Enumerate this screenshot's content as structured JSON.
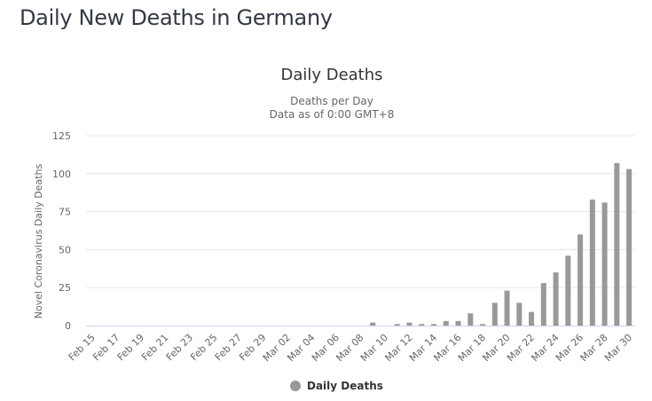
{
  "page": {
    "title": "Daily New Deaths in Germany"
  },
  "chart_data": {
    "type": "bar",
    "title": "Daily Deaths",
    "subtitle": [
      "Deaths per Day",
      "Data as of 0:00 GMT+8"
    ],
    "xlabel": "",
    "ylabel": "Novel Coronavirus Daily Deaths",
    "ylim": [
      0,
      125
    ],
    "yticks": [
      0,
      25,
      50,
      75,
      100,
      125
    ],
    "grid": true,
    "legend": {
      "position": "bottom-center",
      "entries": [
        "Daily Deaths"
      ]
    },
    "color": "#999999",
    "categories": [
      "Feb 15",
      "Feb 16",
      "Feb 17",
      "Feb 18",
      "Feb 19",
      "Feb 20",
      "Feb 21",
      "Feb 22",
      "Feb 23",
      "Feb 24",
      "Feb 25",
      "Feb 26",
      "Feb 27",
      "Feb 28",
      "Feb 29",
      "Mar 01",
      "Mar 02",
      "Mar 03",
      "Mar 04",
      "Mar 05",
      "Mar 06",
      "Mar 07",
      "Mar 08",
      "Mar 09",
      "Mar 10",
      "Mar 11",
      "Mar 12",
      "Mar 13",
      "Mar 14",
      "Mar 15",
      "Mar 16",
      "Mar 17",
      "Mar 18",
      "Mar 19",
      "Mar 20",
      "Mar 21",
      "Mar 22",
      "Mar 23",
      "Mar 24",
      "Mar 25",
      "Mar 26",
      "Mar 27",
      "Mar 28",
      "Mar 29",
      "Mar 30"
    ],
    "xtick_labels": [
      "Feb 15",
      "Feb 17",
      "Feb 19",
      "Feb 21",
      "Feb 23",
      "Feb 25",
      "Feb 27",
      "Feb 29",
      "Mar 02",
      "Mar 04",
      "Mar 06",
      "Mar 08",
      "Mar 10",
      "Mar 12",
      "Mar 14",
      "Mar 16",
      "Mar 18",
      "Mar 20",
      "Mar 22",
      "Mar 24",
      "Mar 26",
      "Mar 28",
      "Mar 30"
    ],
    "series": [
      {
        "name": "Daily Deaths",
        "values": [
          0,
          0,
          0,
          0,
          0,
          0,
          0,
          0,
          0,
          0,
          0,
          0,
          0,
          0,
          0,
          0,
          0,
          0,
          0,
          0,
          0,
          0,
          0,
          2,
          0,
          1,
          2,
          1,
          1,
          3,
          3,
          8,
          1,
          15,
          23,
          15,
          9,
          28,
          35,
          46,
          60,
          83,
          81,
          107,
          103
        ]
      }
    ]
  }
}
